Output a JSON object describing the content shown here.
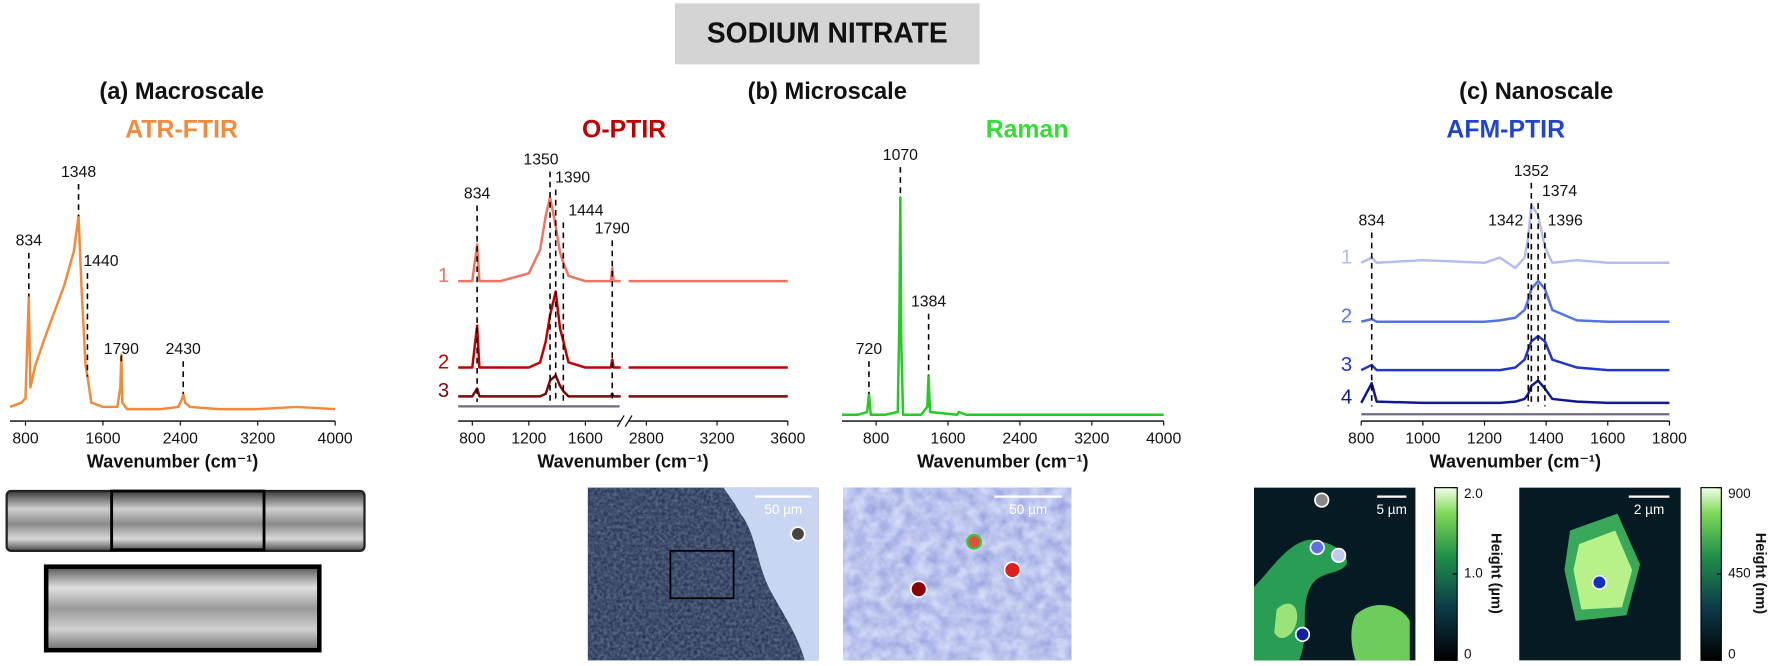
{
  "title": "SODIUM NITRATE",
  "panels": [
    "(a) Macroscale",
    "(b) Microscale",
    "(c) Nanoscale"
  ],
  "chart_data": [
    {
      "type": "line",
      "title": "ATR-FTIR",
      "title_color": "#f08a3c",
      "xlabel": "Wavenumber (cm⁻¹)",
      "xlim": [
        640,
        4000
      ],
      "xticks": [
        800,
        1600,
        2400,
        3200,
        4000
      ],
      "ylim": [
        0,
        1
      ],
      "peaks": [
        834,
        1348,
        1440,
        1790,
        2430
      ],
      "x": [
        640,
        760,
        800,
        834,
        850,
        900,
        1000,
        1100,
        1200,
        1300,
        1348,
        1380,
        1420,
        1440,
        1480,
        1600,
        1750,
        1780,
        1790,
        1800,
        1850,
        2000,
        2200,
        2380,
        2420,
        2430,
        2450,
        2500,
        2800,
        3200,
        3600,
        4000
      ],
      "series": [
        {
          "name": null,
          "color": "#f08a3c",
          "values": [
            0.06,
            0.08,
            0.1,
            0.57,
            0.15,
            0.25,
            0.38,
            0.5,
            0.62,
            0.78,
            0.94,
            0.6,
            0.25,
            0.2,
            0.08,
            0.06,
            0.06,
            0.15,
            0.3,
            0.08,
            0.05,
            0.05,
            0.05,
            0.06,
            0.1,
            0.12,
            0.08,
            0.06,
            0.05,
            0.05,
            0.06,
            0.05
          ]
        }
      ]
    },
    {
      "type": "line",
      "title": "O-PTIR",
      "title_color": "#c00000",
      "xlabel": "Wavenumber (cm⁻¹)",
      "xlim": [
        700,
        3600
      ],
      "xbreak": [
        1850,
        2700
      ],
      "xticks": [
        800,
        1200,
        1600,
        2800,
        3200,
        3600
      ],
      "ylim": [
        0,
        1
      ],
      "peaks": [
        834,
        1350,
        1390,
        1444,
        1790
      ],
      "x": [
        700,
        800,
        834,
        850,
        1000,
        1200,
        1280,
        1320,
        1350,
        1390,
        1420,
        1444,
        1480,
        1600,
        1700,
        1780,
        1790,
        1800,
        1850,
        2700,
        2800,
        3200,
        3600
      ],
      "series": [
        {
          "name": "1",
          "color": "#ef7563",
          "values": [
            0.53,
            0.53,
            0.67,
            0.53,
            0.53,
            0.56,
            0.65,
            0.78,
            0.85,
            0.74,
            0.64,
            0.6,
            0.55,
            0.53,
            0.53,
            0.53,
            0.58,
            0.53,
            0.53,
            0.53,
            0.53,
            0.53,
            0.53
          ]
        },
        {
          "name": "2",
          "color": "#c00000",
          "values": [
            0.2,
            0.2,
            0.36,
            0.2,
            0.2,
            0.2,
            0.22,
            0.3,
            0.4,
            0.49,
            0.35,
            0.3,
            0.22,
            0.2,
            0.2,
            0.2,
            0.23,
            0.2,
            0.2,
            0.2,
            0.2,
            0.2,
            0.2
          ]
        },
        {
          "name": "3",
          "color": "#7a0a0a",
          "values": [
            0.09,
            0.09,
            0.12,
            0.09,
            0.09,
            0.09,
            0.09,
            0.1,
            0.15,
            0.17,
            0.13,
            0.11,
            0.09,
            0.09,
            0.09,
            0.09,
            0.1,
            0.09,
            0.09,
            0.09,
            0.09,
            0.09,
            0.09
          ]
        }
      ]
    },
    {
      "type": "line",
      "title": "Raman",
      "title_color": "#33dd33",
      "xlabel": "Wavenumber (cm⁻¹)",
      "xlim": [
        420,
        4000
      ],
      "xticks": [
        800,
        1600,
        2400,
        3200,
        4000
      ],
      "ylim": [
        0,
        1
      ],
      "peaks": [
        720,
        1070,
        1384
      ],
      "x": [
        420,
        600,
        700,
        720,
        740,
        900,
        1040,
        1060,
        1070,
        1080,
        1100,
        1300,
        1370,
        1384,
        1400,
        1700,
        1720,
        1800,
        2400,
        3200,
        4000
      ],
      "series": [
        {
          "name": null,
          "color": "#22cc22",
          "values": [
            0.02,
            0.02,
            0.03,
            0.1,
            0.02,
            0.02,
            0.03,
            0.4,
            0.85,
            0.3,
            0.02,
            0.02,
            0.05,
            0.17,
            0.03,
            0.02,
            0.03,
            0.02,
            0.02,
            0.02,
            0.02
          ]
        }
      ]
    },
    {
      "type": "line",
      "title": "AFM-PTIR",
      "title_color": "#2244cc",
      "xlabel": "Wavenumber (cm⁻¹)",
      "xlim": [
        800,
        1800
      ],
      "xticks": [
        800,
        1000,
        1200,
        1400,
        1600,
        1800
      ],
      "ylim": [
        0,
        1
      ],
      "peaks": [
        834,
        1342,
        1352,
        1374,
        1396
      ],
      "x": [
        800,
        834,
        850,
        1000,
        1200,
        1250,
        1300,
        1330,
        1342,
        1352,
        1374,
        1396,
        1420,
        1500,
        1600,
        1800
      ],
      "series": [
        {
          "name": "1",
          "color": "#b4bcf0",
          "values": [
            0.6,
            0.62,
            0.6,
            0.61,
            0.6,
            0.62,
            0.58,
            0.62,
            0.7,
            0.82,
            0.78,
            0.66,
            0.6,
            0.61,
            0.6,
            0.6
          ]
        },
        {
          "name": "2",
          "color": "#5573e0",
          "values": [
            0.375,
            0.385,
            0.375,
            0.375,
            0.375,
            0.38,
            0.39,
            0.42,
            0.46,
            0.5,
            0.53,
            0.5,
            0.42,
            0.38,
            0.375,
            0.375
          ]
        },
        {
          "name": "3",
          "color": "#2236c8",
          "values": [
            0.19,
            0.21,
            0.19,
            0.19,
            0.19,
            0.19,
            0.2,
            0.23,
            0.27,
            0.3,
            0.32,
            0.3,
            0.23,
            0.2,
            0.19,
            0.19
          ]
        },
        {
          "name": "4",
          "color": "#101a90",
          "values": [
            0.065,
            0.14,
            0.07,
            0.065,
            0.065,
            0.065,
            0.07,
            0.08,
            0.1,
            0.13,
            0.15,
            0.12,
            0.08,
            0.07,
            0.065,
            0.065
          ]
        }
      ]
    }
  ],
  "images": {
    "optir_scale": "50 µm",
    "raman_scale": "50 µm",
    "afm_maps": [
      {
        "scale": "5 µm",
        "colorbar_label": "Height (µm)",
        "lim": [
          0,
          2
        ],
        "ticks": [
          0,
          {
            "value": 1,
            "label": "1.0"
          },
          {
            "value": 2,
            "label": "2.0"
          }
        ]
      },
      {
        "scale": "2 µm",
        "colorbar_label": "Height (nm)",
        "lim": [
          0,
          900
        ],
        "ticks": [
          0,
          450,
          900
        ]
      }
    ]
  }
}
